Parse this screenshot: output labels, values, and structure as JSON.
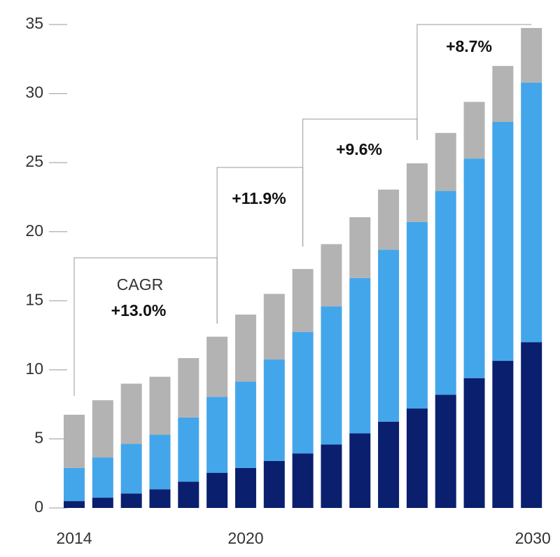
{
  "chart_data": {
    "type": "stacked_bar",
    "categories": [
      "2014",
      null,
      null,
      null,
      null,
      null,
      "2020",
      null,
      null,
      null,
      null,
      null,
      null,
      null,
      null,
      null,
      "2030"
    ],
    "series": [
      {
        "color": "#0a1f6e",
        "values": [
          0.5,
          0.75,
          1.05,
          1.35,
          1.9,
          2.55,
          2.9,
          3.4,
          3.95,
          4.6,
          5.4,
          6.25,
          7.2,
          8.2,
          9.4,
          10.65,
          12.0
        ]
      },
      {
        "color": "#44a6ea",
        "values": [
          2.4,
          2.9,
          3.6,
          3.95,
          4.65,
          5.5,
          6.25,
          7.35,
          8.8,
          10.0,
          11.25,
          12.45,
          13.5,
          14.75,
          15.9,
          17.3,
          18.8
        ]
      },
      {
        "color": "#b3b3b3",
        "values": [
          3.85,
          4.15,
          4.35,
          4.2,
          4.3,
          4.35,
          4.85,
          4.75,
          4.55,
          4.5,
          4.4,
          4.35,
          4.25,
          4.2,
          4.1,
          4.05,
          3.95
        ]
      }
    ],
    "ylim": [
      0,
      35
    ],
    "yticks": [
      0,
      5,
      10,
      15,
      20,
      25,
      30,
      35
    ],
    "annotations": [
      "CAGR",
      "+13.0%",
      "+11.9%",
      "+9.6%",
      "+8.7%"
    ]
  }
}
